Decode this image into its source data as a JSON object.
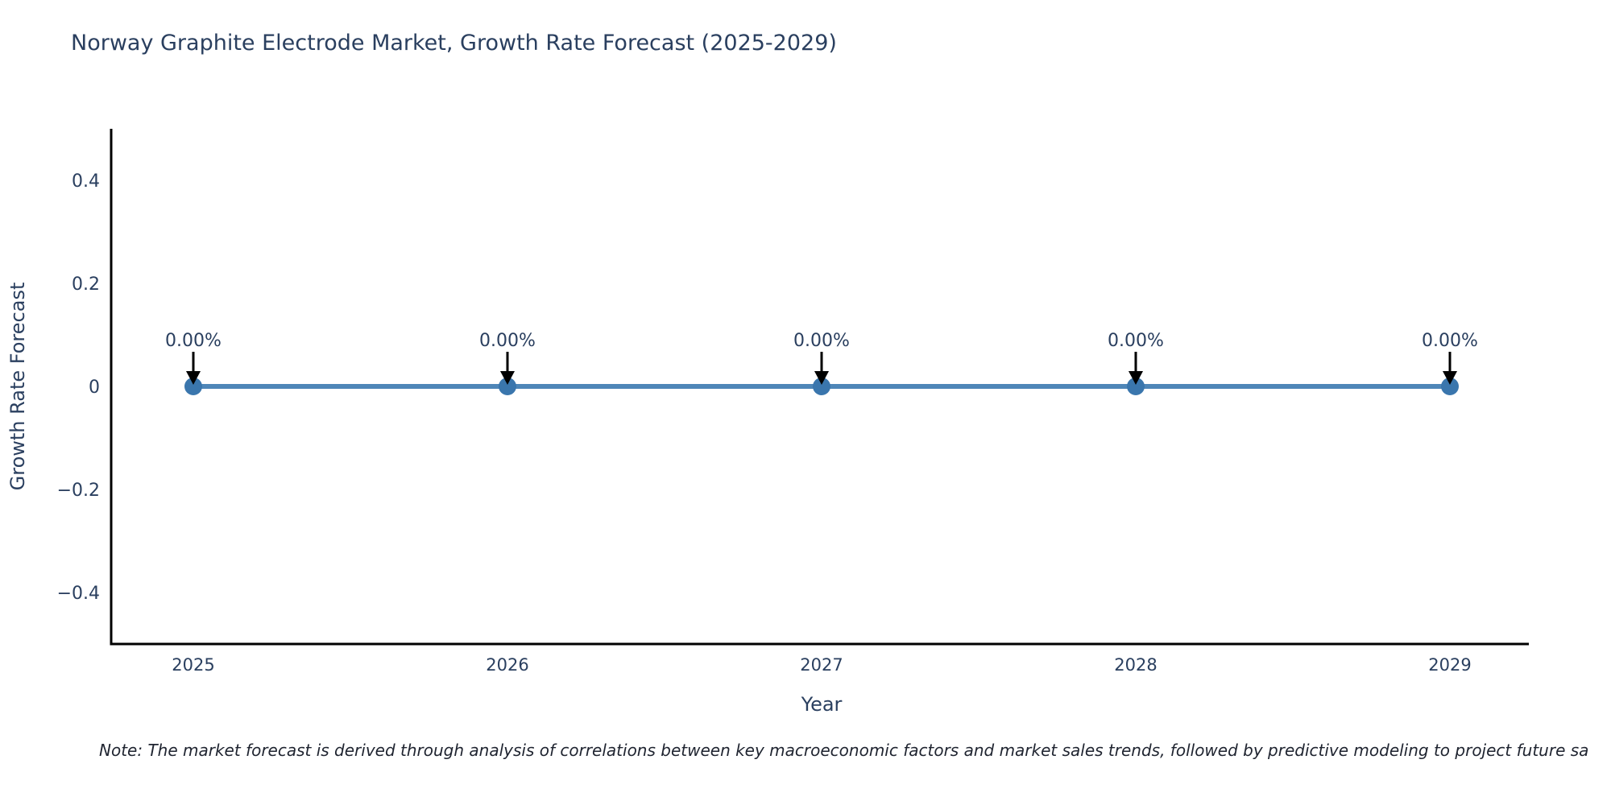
{
  "header": {
    "title": "Norway Graphite Electrode Market, Growth Rate Forecast (2025-2029)"
  },
  "note": {
    "text": "Note: The market forecast is derived through analysis of correlations between key macroeconomic factors and market sales trends, followed by predictive modeling to project future sa"
  },
  "chart_data": {
    "type": "line",
    "title": "Norway Graphite Electrode Market, Growth Rate Forecast (2025-2029)",
    "xlabel": "Year",
    "ylabel": "Growth Rate Forecast",
    "x": [
      2025,
      2026,
      2027,
      2028,
      2029
    ],
    "values": [
      0,
      0,
      0,
      0,
      0
    ],
    "point_labels": [
      "0.00%",
      "0.00%",
      "0.00%",
      "0.00%",
      "0.00%"
    ],
    "xtick_labels": [
      "2025",
      "2026",
      "2027",
      "2028",
      "2029"
    ],
    "yticks": [
      0.4,
      0.2,
      0,
      -0.2,
      -0.4
    ],
    "ytick_labels": [
      "0.4",
      "0.2",
      "0",
      "−0.2",
      "−0.4"
    ],
    "ylim": [
      -0.5,
      0.5
    ],
    "grid": false,
    "legend_position": "none",
    "colors": {
      "line": "#4e86b8",
      "marker": "#3a76ad",
      "axis": "#000000",
      "text": "#2a3f5f",
      "annotation_arrow": "#000000",
      "background": "#ffffff"
    }
  }
}
